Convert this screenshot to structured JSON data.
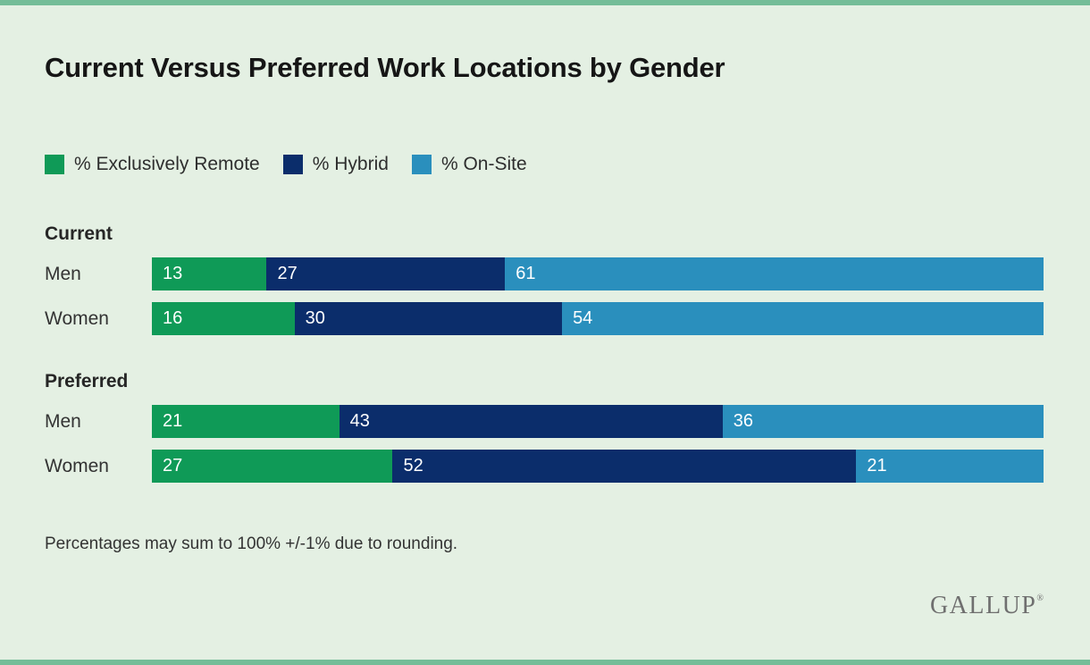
{
  "title": "Current Versus Preferred Work Locations by Gender",
  "legend": [
    {
      "label": "% Exclusively Remote",
      "color": "#0f9a57"
    },
    {
      "label": "% Hybrid",
      "color": "#0b2d6b"
    },
    {
      "label": "% On-Site",
      "color": "#2a8fbd"
    }
  ],
  "footnote": "Percentages may sum to 100% +/-1% due to rounding.",
  "brand": "GALLUP",
  "brand_mark": "®",
  "chart_data": {
    "type": "bar",
    "orientation": "horizontal",
    "stacked": true,
    "series": [
      "% Exclusively Remote",
      "% Hybrid",
      "% On-Site"
    ],
    "colors": [
      "#0f9a57",
      "#0b2d6b",
      "#2a8fbd"
    ],
    "xmax": 101,
    "groups": [
      {
        "label": "Current",
        "rows": [
          {
            "category": "Men",
            "values": [
              13,
              27,
              61
            ]
          },
          {
            "category": "Women",
            "values": [
              16,
              30,
              54
            ]
          }
        ]
      },
      {
        "label": "Preferred",
        "rows": [
          {
            "category": "Men",
            "values": [
              21,
              43,
              36
            ]
          },
          {
            "category": "Women",
            "values": [
              27,
              52,
              21
            ]
          }
        ]
      }
    ]
  }
}
